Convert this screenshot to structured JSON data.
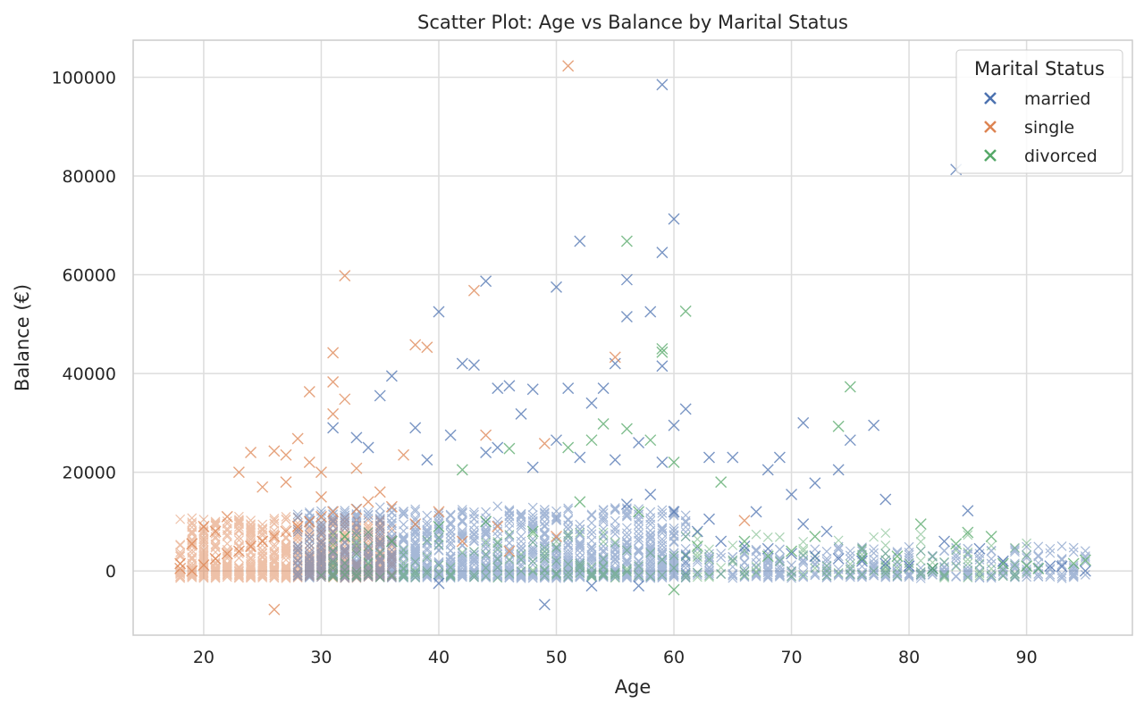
{
  "chart_data": {
    "type": "scatter",
    "title": "Scatter Plot: Age vs Balance by Marital Status",
    "xlabel": "Age",
    "ylabel": "Balance (€)",
    "xlim": [
      14,
      99
    ],
    "ylim": [
      -13000,
      107500
    ],
    "xticks": [
      20,
      30,
      40,
      50,
      60,
      70,
      80,
      90
    ],
    "yticks": [
      0,
      20000,
      40000,
      60000,
      80000,
      100000
    ],
    "grid": true,
    "marker": "x",
    "legend": {
      "title": "Marital Status",
      "position": "top-right"
    },
    "series": [
      {
        "name": "married",
        "color": "#4c72b0",
        "points": [
          [
            59,
            98500
          ],
          [
            84,
            81300
          ],
          [
            60,
            71300
          ],
          [
            52,
            66800
          ],
          [
            59,
            64500
          ],
          [
            44,
            58700
          ],
          [
            56,
            59000
          ],
          [
            50,
            57500
          ],
          [
            40,
            52500
          ],
          [
            56,
            51500
          ],
          [
            58,
            52500
          ],
          [
            59,
            41500
          ],
          [
            36,
            39500
          ],
          [
            45,
            37000
          ],
          [
            46,
            37500
          ],
          [
            55,
            42000
          ],
          [
            42,
            42000
          ],
          [
            43,
            41700
          ],
          [
            35,
            35500
          ],
          [
            48,
            36800
          ],
          [
            51,
            37000
          ],
          [
            53,
            34000
          ],
          [
            60,
            29500
          ],
          [
            61,
            32800
          ],
          [
            47,
            31800
          ],
          [
            54,
            37000
          ],
          [
            71,
            30000
          ],
          [
            75,
            26500
          ],
          [
            77,
            29500
          ],
          [
            74,
            20500
          ],
          [
            68,
            20500
          ],
          [
            69,
            23000
          ],
          [
            65,
            23000
          ],
          [
            63,
            23000
          ],
          [
            70,
            15500
          ],
          [
            72,
            17800
          ],
          [
            78,
            14500
          ],
          [
            85,
            12200
          ],
          [
            83,
            6000
          ],
          [
            86,
            4500
          ],
          [
            88,
            2000
          ],
          [
            92,
            1000
          ],
          [
            93,
            900
          ],
          [
            95,
            0
          ],
          [
            49,
            -6800
          ],
          [
            57,
            -3000
          ],
          [
            53,
            -3000
          ],
          [
            40,
            -2500
          ],
          [
            31,
            29000
          ],
          [
            33,
            27000
          ],
          [
            38,
            29000
          ],
          [
            41,
            27500
          ],
          [
            45,
            25000
          ],
          [
            50,
            26500
          ],
          [
            52,
            23000
          ],
          [
            55,
            22500
          ],
          [
            57,
            26000
          ],
          [
            59,
            22000
          ],
          [
            39,
            22500
          ],
          [
            34,
            25000
          ],
          [
            44,
            24000
          ],
          [
            48,
            21000
          ],
          [
            56,
            13500
          ],
          [
            58,
            15500
          ],
          [
            60,
            12000
          ],
          [
            62,
            8000
          ],
          [
            64,
            6000
          ],
          [
            66,
            5000
          ],
          [
            68,
            4500
          ],
          [
            70,
            3500
          ],
          [
            72,
            3000
          ],
          [
            74,
            2500
          ],
          [
            76,
            2000
          ],
          [
            78,
            1500
          ],
          [
            80,
            1000
          ],
          [
            82,
            500
          ],
          [
            63,
            10500
          ],
          [
            67,
            12000
          ],
          [
            71,
            9500
          ],
          [
            73,
            8000
          ]
        ]
      },
      {
        "name": "single",
        "color": "#dd8452",
        "points": [
          [
            51,
            102300
          ],
          [
            32,
            59800
          ],
          [
            43,
            56800
          ],
          [
            38,
            45800
          ],
          [
            39,
            45300
          ],
          [
            31,
            44200
          ],
          [
            55,
            43300
          ],
          [
            31,
            38300
          ],
          [
            32,
            34800
          ],
          [
            29,
            36300
          ],
          [
            31,
            31800
          ],
          [
            28,
            26800
          ],
          [
            24,
            24000
          ],
          [
            26,
            24300
          ],
          [
            23,
            20000
          ],
          [
            27,
            23500
          ],
          [
            29,
            22000
          ],
          [
            33,
            20800
          ],
          [
            30,
            20000
          ],
          [
            37,
            23500
          ],
          [
            25,
            17000
          ],
          [
            22,
            11000
          ],
          [
            20,
            9000
          ],
          [
            21,
            8000
          ],
          [
            19,
            5500
          ],
          [
            18,
            1500
          ],
          [
            18,
            500
          ],
          [
            19,
            0
          ],
          [
            20,
            1200
          ],
          [
            21,
            2500
          ],
          [
            22,
            3500
          ],
          [
            23,
            4000
          ],
          [
            24,
            5000
          ],
          [
            25,
            6000
          ],
          [
            26,
            7000
          ],
          [
            27,
            8000
          ],
          [
            28,
            9000
          ],
          [
            29,
            10000
          ],
          [
            30,
            11000
          ],
          [
            31,
            12000
          ],
          [
            26,
            -7800
          ],
          [
            44,
            27500
          ],
          [
            49,
            25800
          ],
          [
            66,
            10200
          ],
          [
            35,
            16000
          ],
          [
            40,
            12000
          ],
          [
            45,
            9000
          ],
          [
            50,
            7000
          ],
          [
            34,
            14000
          ],
          [
            36,
            13000
          ],
          [
            38,
            9500
          ],
          [
            42,
            6000
          ],
          [
            46,
            4000
          ],
          [
            27,
            18000
          ],
          [
            30,
            15000
          ],
          [
            33,
            12500
          ]
        ]
      },
      {
        "name": "divorced",
        "color": "#55a868",
        "points": [
          [
            56,
            66800
          ],
          [
            61,
            52600
          ],
          [
            59,
            45000
          ],
          [
            59,
            44300
          ],
          [
            75,
            37300
          ],
          [
            74,
            29300
          ],
          [
            54,
            29800
          ],
          [
            56,
            28800
          ],
          [
            58,
            26500
          ],
          [
            53,
            26500
          ],
          [
            51,
            25000
          ],
          [
            46,
            24800
          ],
          [
            64,
            18000
          ],
          [
            60,
            22000
          ],
          [
            87,
            7000
          ],
          [
            85,
            7800
          ],
          [
            95,
            2200
          ],
          [
            94,
            1500
          ],
          [
            90,
            1000
          ],
          [
            81,
            9500
          ],
          [
            79,
            3000
          ],
          [
            82,
            500
          ],
          [
            60,
            -3800
          ],
          [
            70,
            4000
          ],
          [
            66,
            6000
          ],
          [
            62,
            5000
          ],
          [
            48,
            8000
          ],
          [
            44,
            10000
          ],
          [
            40,
            9000
          ],
          [
            36,
            6000
          ],
          [
            32,
            7000
          ],
          [
            42,
            20500
          ],
          [
            52,
            14000
          ],
          [
            57,
            12000
          ],
          [
            68,
            3000
          ],
          [
            76,
            2500
          ],
          [
            72,
            7000
          ],
          [
            84,
            5500
          ],
          [
            88,
            1500
          ],
          [
            91,
            500
          ]
        ]
      }
    ]
  }
}
